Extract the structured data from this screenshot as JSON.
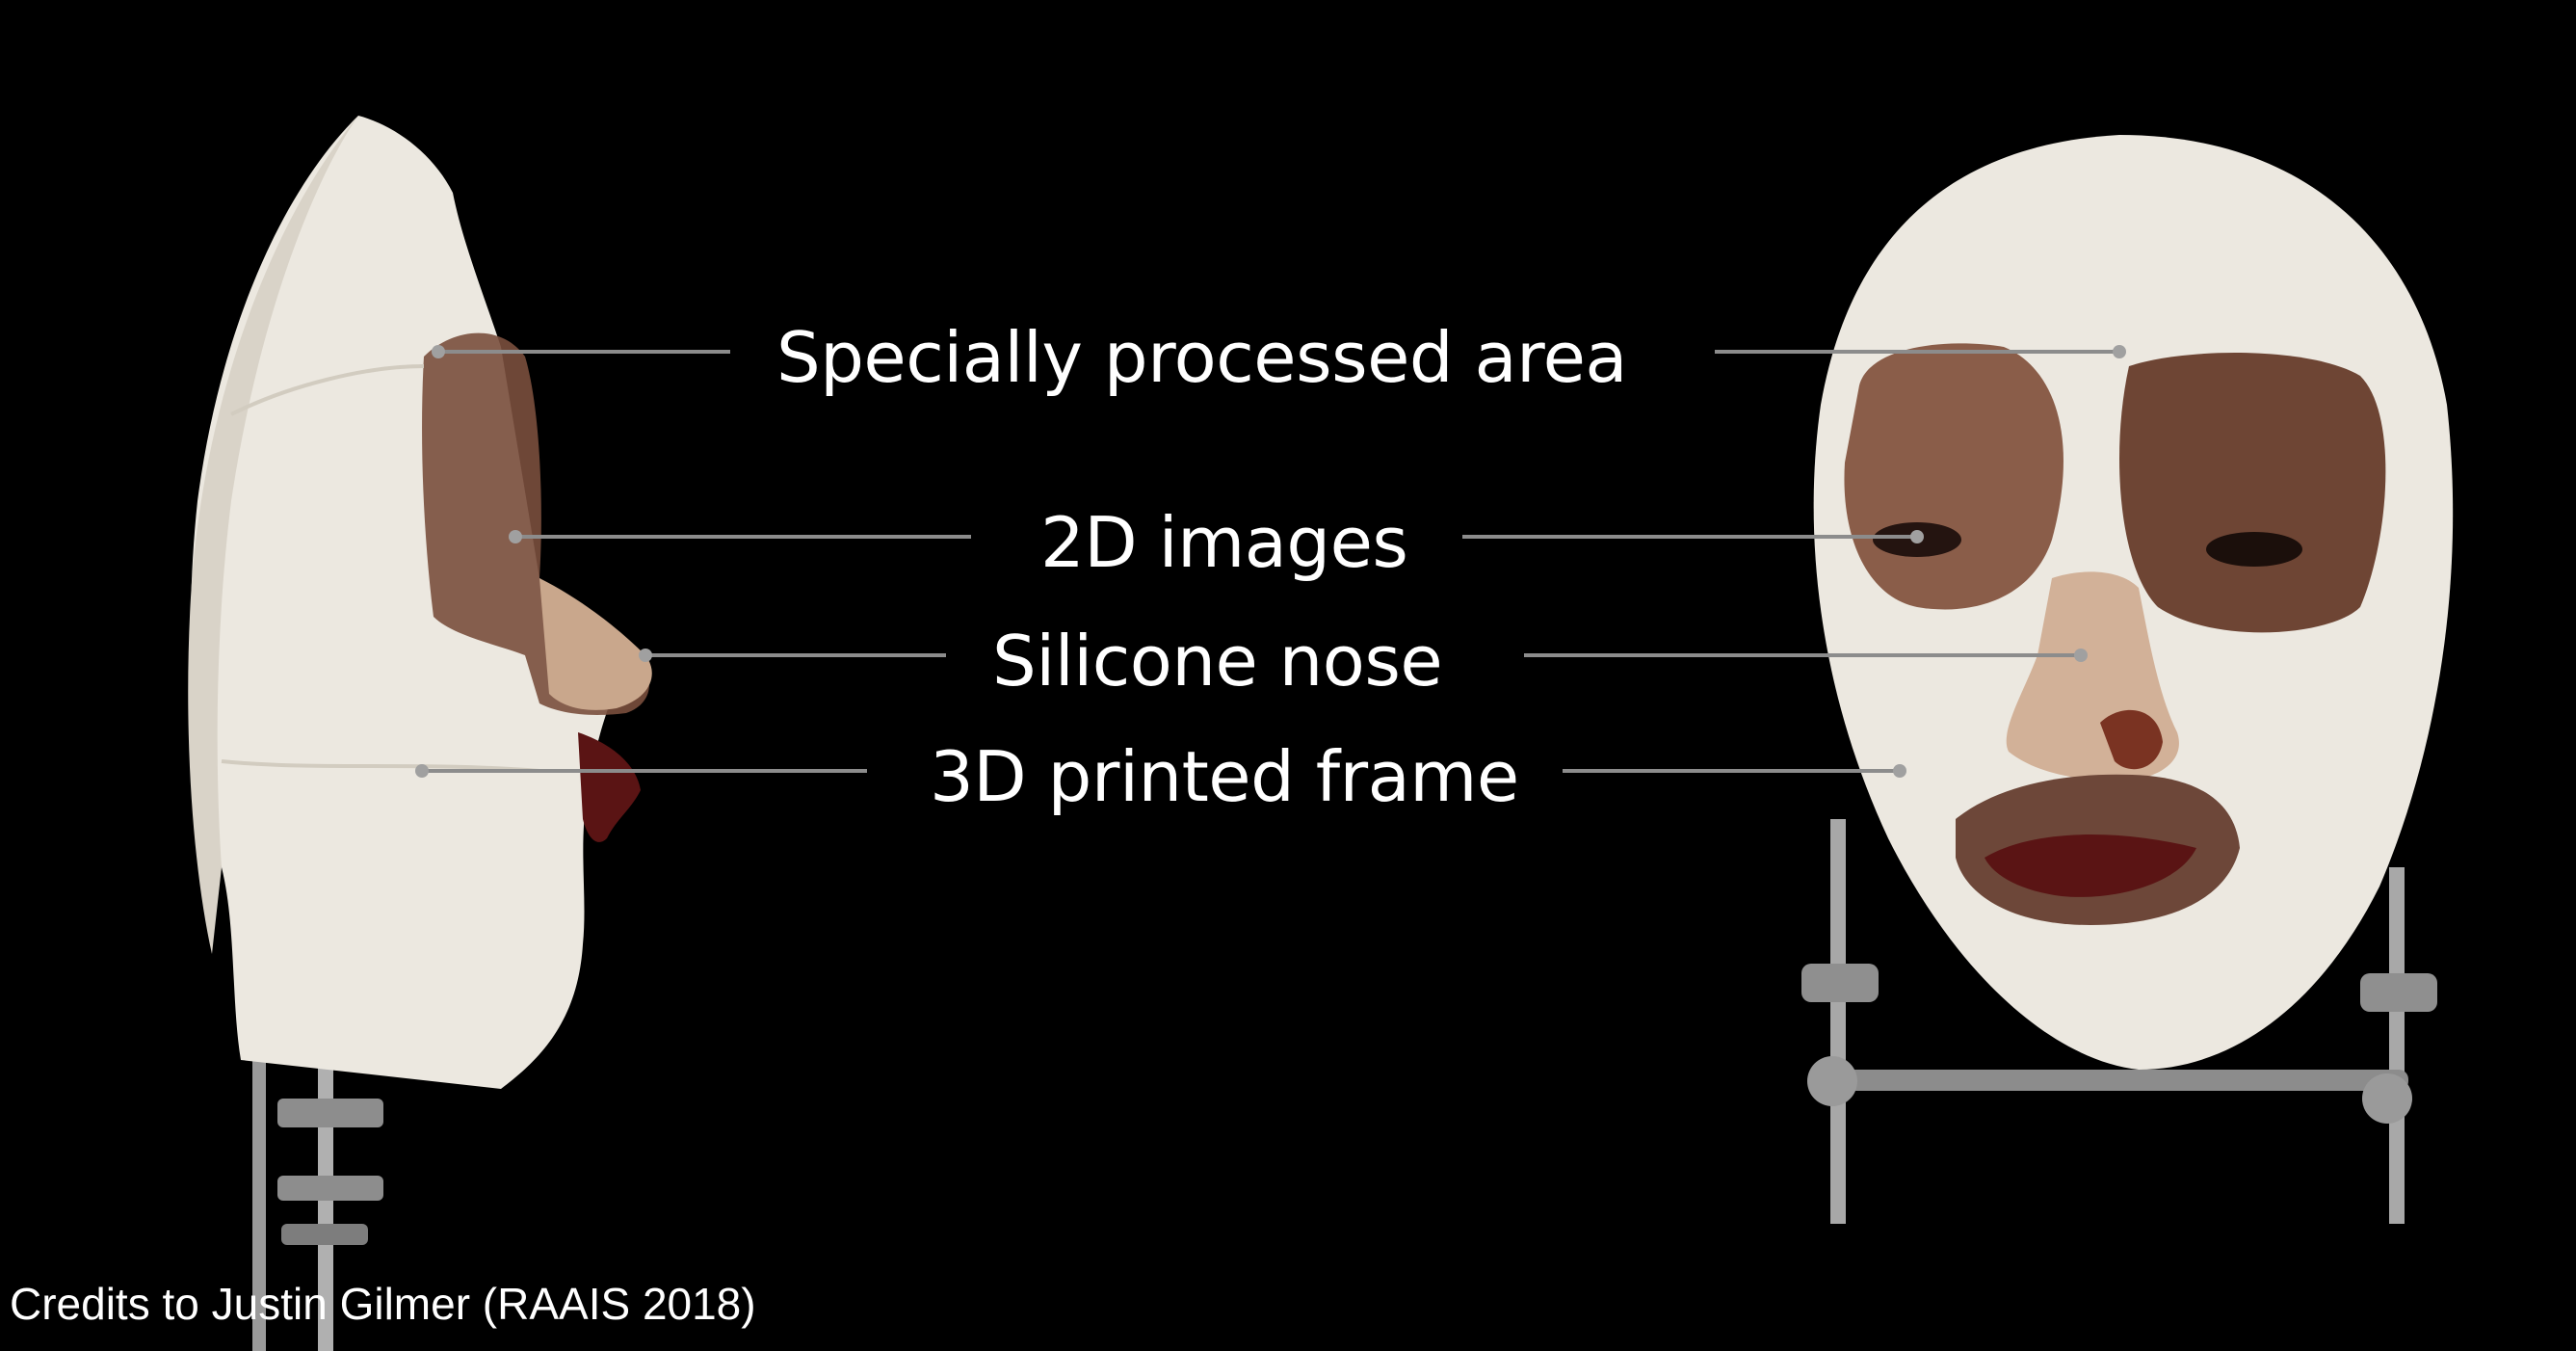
{
  "labels": {
    "specially_processed_area": "Specially processed area",
    "images_2d": "2D images",
    "silicone_nose": "Silicone nose",
    "printed_frame_3d": "3D printed frame"
  },
  "credit": "Credits to Justin Gilmer (RAAIS 2018)",
  "colors": {
    "background": "#000000",
    "mask_white": "#ece8e0",
    "skin": "#7a4f3d",
    "lips": "#5a1414",
    "leader_line": "#8c8c8c",
    "text": "#ffffff"
  }
}
